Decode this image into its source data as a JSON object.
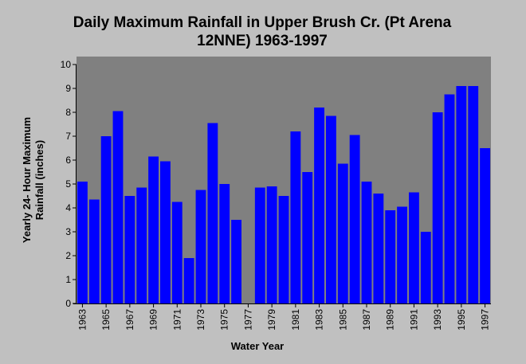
{
  "chart_data": {
    "type": "bar",
    "title_line1": "Daily Maximum Rainfall in Upper Brush Cr. (Pt Arena",
    "title_line2": "12NNE) 1963-1997",
    "xlabel": "Water Year",
    "ylabel_line1": "Yearly 24- Hour Maximum",
    "ylabel_line2": "Rainfall (inches)",
    "ylim": [
      0,
      10
    ],
    "yticks": [
      "0",
      "1",
      "2",
      "3",
      "4",
      "5",
      "6",
      "7",
      "8",
      "9",
      "10"
    ],
    "categories": [
      "1963",
      "1964",
      "1965",
      "1966",
      "1967",
      "1968",
      "1969",
      "1970",
      "1971",
      "1972",
      "1973",
      "1974",
      "1975",
      "1976",
      "1977",
      "1978",
      "1979",
      "1980",
      "1981",
      "1982",
      "1983",
      "1984",
      "1985",
      "1986",
      "1987",
      "1988",
      "1989",
      "1990",
      "1991",
      "1992",
      "1993",
      "1994",
      "1995",
      "1996",
      "1997"
    ],
    "xtick_labels": [
      "1963",
      "1965",
      "1967",
      "1969",
      "1971",
      "1973",
      "1975",
      "1977",
      "1979",
      "1981",
      "1983",
      "1985",
      "1987",
      "1989",
      "1991",
      "1993",
      "1995",
      "1997"
    ],
    "values": [
      5.1,
      4.35,
      7.0,
      8.05,
      4.5,
      4.85,
      6.15,
      5.95,
      4.25,
      1.9,
      4.75,
      7.55,
      5.0,
      3.5,
      0,
      4.85,
      4.9,
      4.5,
      7.2,
      5.5,
      8.2,
      7.85,
      5.85,
      7.05,
      5.1,
      4.6,
      3.9,
      4.05,
      4.65,
      3.0,
      8.0,
      8.75,
      9.1,
      9.1,
      6.5
    ],
    "bar_color": "#0000ff",
    "plot_background": "#808080",
    "page_background": "#c0c0c0",
    "grid": false
  }
}
